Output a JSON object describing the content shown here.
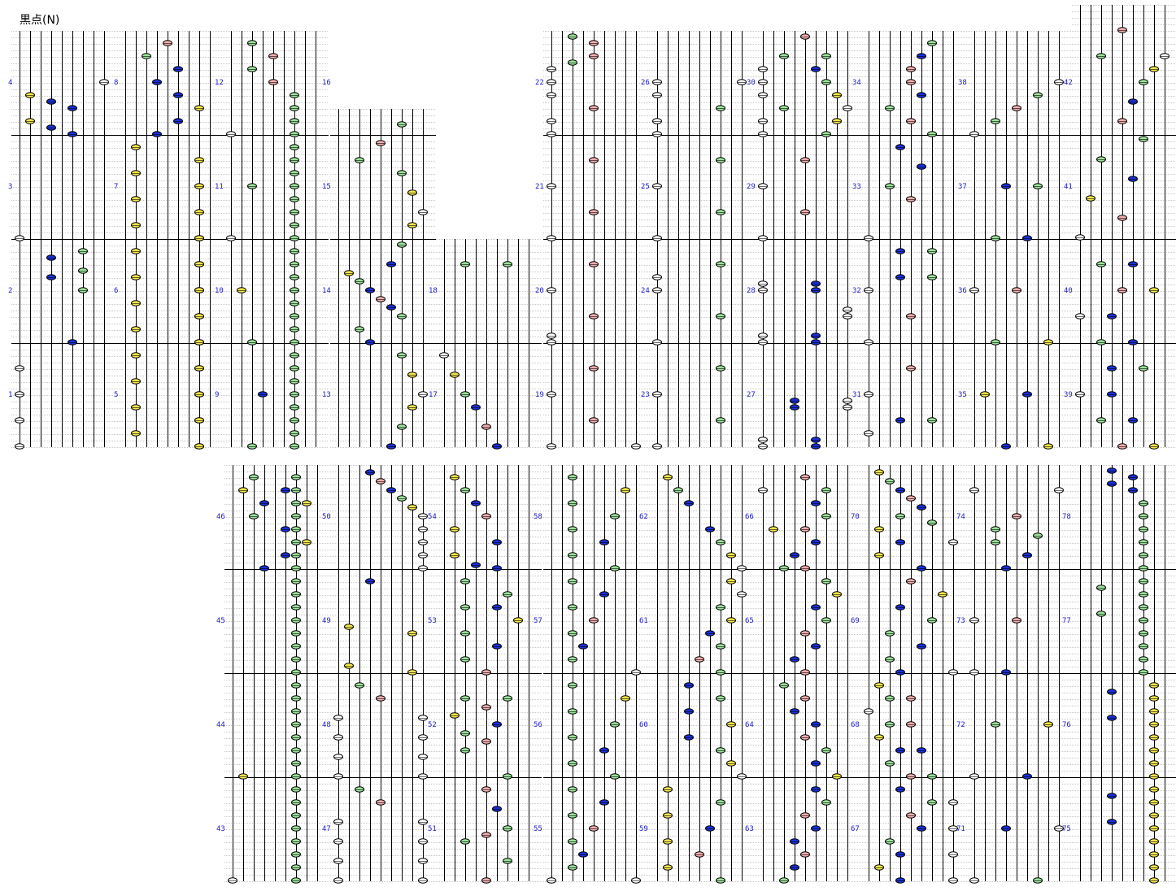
{
  "title": "黒点(N)",
  "note_colors": {
    "white": "#ffffff",
    "yellow": "#f2e64a",
    "blue": "#1a2fd8",
    "green": "#9be29b",
    "pink": "#f2aeae"
  },
  "measure_numbers": {
    "top": [
      [
        "4",
        "3",
        "2",
        "1"
      ],
      [
        "8",
        "7",
        "6",
        "5"
      ],
      [
        "12",
        "11",
        "10",
        "9"
      ],
      [
        "16",
        "15",
        "14",
        "13"
      ],
      [
        "18",
        "17"
      ],
      [
        "22",
        "21",
        "20",
        "19"
      ],
      [
        "26",
        "25",
        "24",
        "23"
      ],
      [
        "30",
        "29",
        "28",
        "27"
      ],
      [
        "34",
        "33",
        "32",
        "31"
      ],
      [
        "38",
        "37",
        "36",
        "35"
      ],
      [
        "42",
        "41",
        "40",
        "39"
      ]
    ],
    "bottom": [
      [
        "46",
        "45",
        "44",
        "43"
      ],
      [
        "50",
        "49",
        "48",
        "47"
      ],
      [
        "54",
        "53",
        "52",
        "51"
      ],
      [
        "58",
        "57",
        "56",
        "55"
      ],
      [
        "62",
        "61",
        "60",
        "59"
      ],
      [
        "66",
        "65",
        "64",
        "63"
      ],
      [
        "70",
        "69",
        "68",
        "67"
      ],
      [
        "74",
        "73",
        "72",
        "71"
      ],
      [
        "78",
        "77",
        "76",
        "75"
      ]
    ]
  }
}
